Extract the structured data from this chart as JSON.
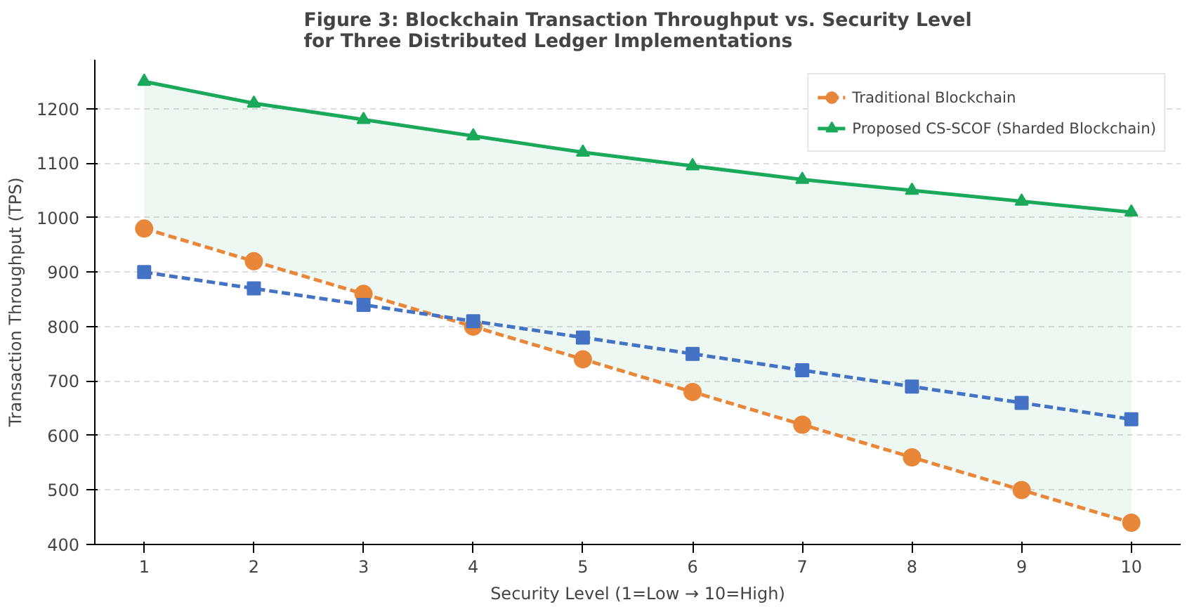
{
  "chart_data": {
    "type": "line",
    "title": "Figure 3: Blockchain Transaction Throughput vs. Security Level\nfor Three Distributed Ledger Implementations",
    "xlabel": "Security Level (1=Low → 10=High)",
    "ylabel": "Transaction Throughput (TPS)",
    "x": [
      1,
      2,
      3,
      4,
      5,
      6,
      7,
      8,
      9,
      10
    ],
    "series": [
      {
        "name": "Traditional Blockchain",
        "color": "#e8873a",
        "marker": "circle",
        "line_style": "dashed",
        "values": [
          980,
          920,
          860,
          800,
          740,
          680,
          620,
          560,
          500,
          440
        ]
      },
      {
        "color": "#4472c4",
        "marker": "square",
        "line_style": "dashed",
        "values": [
          900,
          870,
          840,
          810,
          780,
          750,
          720,
          690,
          660,
          630
        ]
      },
      {
        "name": "Proposed CS-SCOF (Sharded Blockchain)",
        "color": "#1aa85a",
        "marker": "triangle",
        "line_style": "solid",
        "values": [
          1250,
          1210,
          1180,
          1150,
          1120,
          1095,
          1070,
          1050,
          1030,
          1010
        ],
        "lower": [
          980,
          920,
          860,
          800,
          740,
          680,
          620,
          560,
          500,
          440
        ],
        "upper": [
          1250,
          1210,
          1180,
          1150,
          1120,
          1095,
          1070,
          1050,
          1030,
          1010
        ]
      }
    ],
    "xlim": [
      0.55,
      10.45
    ],
    "ylim": [
      400,
      1290
    ],
    "xticks": [
      1,
      2,
      3,
      4,
      5,
      6,
      7,
      8,
      9,
      10
    ],
    "yticks": [
      400,
      500,
      600,
      700,
      800,
      900,
      1000,
      1100,
      1200
    ],
    "grid": "y",
    "legend": "top right"
  }
}
